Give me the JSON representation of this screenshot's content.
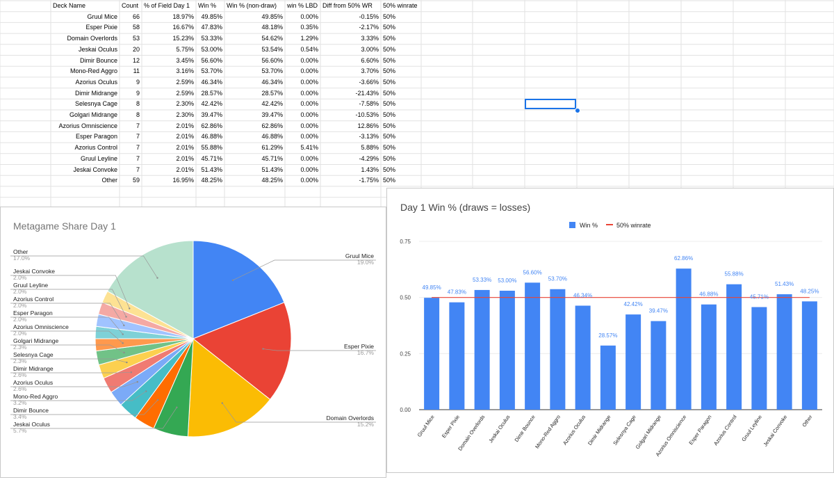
{
  "table": {
    "headers": [
      "Deck Name",
      "Count",
      "% of Field Day 1",
      "Win %",
      "Win % (non-draw)",
      "win % LBD",
      "Diff from 50% WR",
      "50% winrate"
    ],
    "rows": [
      [
        "Gruul Mice",
        "66",
        "18.97%",
        "49.85%",
        "49.85%",
        "0.00%",
        "-0.15%",
        "50%"
      ],
      [
        "Esper Pixie",
        "58",
        "16.67%",
        "47.83%",
        "48.18%",
        "0.35%",
        "-2.17%",
        "50%"
      ],
      [
        "Domain Overlords",
        "53",
        "15.23%",
        "53.33%",
        "54.62%",
        "1.29%",
        "3.33%",
        "50%"
      ],
      [
        "Jeskai Oculus",
        "20",
        "5.75%",
        "53.00%",
        "53.54%",
        "0.54%",
        "3.00%",
        "50%"
      ],
      [
        "Dimir Bounce",
        "12",
        "3.45%",
        "56.60%",
        "56.60%",
        "0.00%",
        "6.60%",
        "50%"
      ],
      [
        "Mono-Red Aggro",
        "11",
        "3.16%",
        "53.70%",
        "53.70%",
        "0.00%",
        "3.70%",
        "50%"
      ],
      [
        "Azorius Oculus",
        "9",
        "2.59%",
        "46.34%",
        "46.34%",
        "0.00%",
        "-3.66%",
        "50%"
      ],
      [
        "Dimir Midrange",
        "9",
        "2.59%",
        "28.57%",
        "28.57%",
        "0.00%",
        "-21.43%",
        "50%"
      ],
      [
        "Selesnya Cage",
        "8",
        "2.30%",
        "42.42%",
        "42.42%",
        "0.00%",
        "-7.58%",
        "50%"
      ],
      [
        "Golgari Midrange",
        "8",
        "2.30%",
        "39.47%",
        "39.47%",
        "0.00%",
        "-10.53%",
        "50%"
      ],
      [
        "Azorius Omniscience",
        "7",
        "2.01%",
        "62.86%",
        "62.86%",
        "0.00%",
        "12.86%",
        "50%"
      ],
      [
        "Esper Paragon",
        "7",
        "2.01%",
        "46.88%",
        "46.88%",
        "0.00%",
        "-3.13%",
        "50%"
      ],
      [
        "Azorius Control",
        "7",
        "2.01%",
        "55.88%",
        "61.29%",
        "5.41%",
        "5.88%",
        "50%"
      ],
      [
        "Gruul Leyline",
        "7",
        "2.01%",
        "45.71%",
        "45.71%",
        "0.00%",
        "-4.29%",
        "50%"
      ],
      [
        "Jeskai Convoke",
        "7",
        "2.01%",
        "51.43%",
        "51.43%",
        "0.00%",
        "1.43%",
        "50%"
      ],
      [
        "Other",
        "59",
        "16.95%",
        "48.25%",
        "48.25%",
        "0.00%",
        "-1.75%",
        "50%"
      ]
    ]
  },
  "chart_data": [
    {
      "type": "pie",
      "title": "Metagame Share Day 1",
      "slices": [
        {
          "label": "Gruul Mice",
          "pct": "19.0%",
          "value": 18.97,
          "color": "#4285f4"
        },
        {
          "label": "Esper Pixie",
          "pct": "16.7%",
          "value": 16.67,
          "color": "#ea4335"
        },
        {
          "label": "Domain Overlords",
          "pct": "15.2%",
          "value": 15.23,
          "color": "#fbbc04"
        },
        {
          "label": "Jeskai Oculus",
          "pct": "5.7%",
          "value": 5.75,
          "color": "#34a853"
        },
        {
          "label": "Dimir Bounce",
          "pct": "3.4%",
          "value": 3.45,
          "color": "#ff6d01"
        },
        {
          "label": "Mono-Red Aggro",
          "pct": "3.2%",
          "value": 3.16,
          "color": "#46bdc6"
        },
        {
          "label": "Azorius Oculus",
          "pct": "2.6%",
          "value": 2.59,
          "color": "#7baaf7"
        },
        {
          "label": "Dimir Midrange",
          "pct": "2.6%",
          "value": 2.59,
          "color": "#f07b72"
        },
        {
          "label": "Selesnya Cage",
          "pct": "2.3%",
          "value": 2.3,
          "color": "#fcd04f"
        },
        {
          "label": "Golgari Midrange",
          "pct": "2.3%",
          "value": 2.3,
          "color": "#71c287"
        },
        {
          "label": "Azorius Omniscience",
          "pct": "2.0%",
          "value": 2.01,
          "color": "#ff994d"
        },
        {
          "label": "Esper Paragon",
          "pct": "2.0%",
          "value": 2.01,
          "color": "#7ed1d7"
        },
        {
          "label": "Azorius Control",
          "pct": "2.0%",
          "value": 2.01,
          "color": "#a0c3ff"
        },
        {
          "label": "Gruul Leyline",
          "pct": "2.0%",
          "value": 2.01,
          "color": "#f4a9a4"
        },
        {
          "label": "Jeskai Convoke",
          "pct": "2.0%",
          "value": 2.01,
          "color": "#fde293"
        },
        {
          "label": "Other",
          "pct": "17.0%",
          "value": 16.95,
          "color": "#b7e1cd"
        }
      ]
    },
    {
      "type": "bar",
      "title": "Day 1 Win % (draws = losses)",
      "categories": [
        "Gruul Mice",
        "Esper Pixie",
        "Domain Overlords",
        "Jeskai Oculus",
        "Dimir Bounce",
        "Mono-Red Aggro",
        "Azorius Oculus",
        "Dimir Midrange",
        "Selesnya Cage",
        "Golgari Midrange",
        "Azorius Omniscience",
        "Esper Paragon",
        "Azorius Control",
        "Gruul Leyline",
        "Jeskai Convoke",
        "Other"
      ],
      "series": [
        {
          "name": "Win %",
          "color": "#4285f4",
          "values": [
            0.4985,
            0.4783,
            0.5333,
            0.53,
            0.566,
            0.537,
            0.4634,
            0.2857,
            0.4242,
            0.3947,
            0.6286,
            0.4688,
            0.5588,
            0.4571,
            0.5143,
            0.4825
          ],
          "labels": [
            "49.85%",
            "47.83%",
            "53.33%",
            "53.00%",
            "56.60%",
            "53.70%",
            "46.34%",
            "28.57%",
            "42.42%",
            "39.47%",
            "62.86%",
            "46.88%",
            "55.88%",
            "45.71%",
            "51.43%",
            "48.25%"
          ]
        },
        {
          "name": "50% winrate",
          "color": "#ea4335",
          "values": [
            0.5,
            0.5,
            0.5,
            0.5,
            0.5,
            0.5,
            0.5,
            0.5,
            0.5,
            0.5,
            0.5,
            0.5,
            0.5,
            0.5,
            0.5,
            0.5
          ]
        }
      ],
      "yticks": [
        "0.00",
        "0.25",
        "0.50",
        "0.75"
      ],
      "ylim": [
        0,
        0.75
      ]
    }
  ]
}
